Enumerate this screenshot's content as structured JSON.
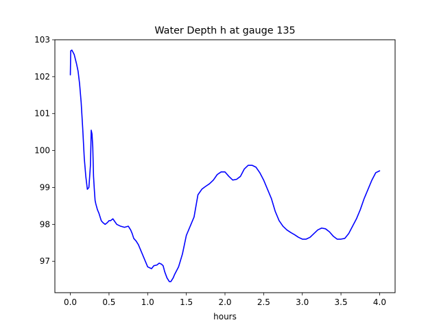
{
  "chart_data": {
    "type": "line",
    "title": "Water Depth h at gauge 135",
    "xlabel": "hours",
    "ylabel": "",
    "xlim": [
      -0.2,
      4.2
    ],
    "ylim": [
      96.15,
      103.0
    ],
    "grid": false,
    "x_ticks": [
      {
        "value": 0.0,
        "label": "0.0"
      },
      {
        "value": 0.5,
        "label": "0.5"
      },
      {
        "value": 1.0,
        "label": "1.0"
      },
      {
        "value": 1.5,
        "label": "1.5"
      },
      {
        "value": 2.0,
        "label": "2.0"
      },
      {
        "value": 2.5,
        "label": "2.5"
      },
      {
        "value": 3.0,
        "label": "3.0"
      },
      {
        "value": 3.5,
        "label": "3.5"
      },
      {
        "value": 4.0,
        "label": "4.0"
      }
    ],
    "y_ticks": [
      {
        "value": 97,
        "label": "97"
      },
      {
        "value": 98,
        "label": "98"
      },
      {
        "value": 99,
        "label": "99"
      },
      {
        "value": 100,
        "label": "100"
      },
      {
        "value": 101,
        "label": "101"
      },
      {
        "value": 102,
        "label": "102"
      },
      {
        "value": 103,
        "label": "103"
      }
    ],
    "series": [
      {
        "color": "#0000ff",
        "x": [
          0.0,
          0.005,
          0.02,
          0.05,
          0.08,
          0.1,
          0.12,
          0.14,
          0.16,
          0.18,
          0.2,
          0.22,
          0.24,
          0.26,
          0.27,
          0.28,
          0.29,
          0.3,
          0.31,
          0.32,
          0.33,
          0.35,
          0.37,
          0.4,
          0.42,
          0.45,
          0.48,
          0.5,
          0.52,
          0.55,
          0.6,
          0.65,
          0.7,
          0.75,
          0.78,
          0.8,
          0.82,
          0.85,
          0.88,
          0.9,
          0.95,
          1.0,
          1.05,
          1.08,
          1.12,
          1.15,
          1.18,
          1.2,
          1.22,
          1.25,
          1.28,
          1.3,
          1.33,
          1.35,
          1.4,
          1.45,
          1.5,
          1.55,
          1.6,
          1.65,
          1.7,
          1.73,
          1.75,
          1.8,
          1.85,
          1.9,
          1.95,
          2.0,
          2.05,
          2.1,
          2.15,
          2.2,
          2.25,
          2.3,
          2.35,
          2.4,
          2.45,
          2.5,
          2.55,
          2.6,
          2.65,
          2.7,
          2.75,
          2.8,
          2.85,
          2.9,
          2.95,
          3.0,
          3.05,
          3.1,
          3.15,
          3.2,
          3.25,
          3.3,
          3.35,
          3.4,
          3.45,
          3.5,
          3.55,
          3.6,
          3.65,
          3.7,
          3.75,
          3.8,
          3.85,
          3.9,
          3.95,
          4.0
        ],
        "y": [
          102.05,
          102.7,
          102.72,
          102.6,
          102.35,
          102.15,
          101.8,
          101.3,
          100.6,
          99.8,
          99.3,
          98.95,
          99.0,
          99.6,
          100.55,
          100.45,
          100.1,
          99.3,
          98.95,
          98.65,
          98.55,
          98.4,
          98.3,
          98.1,
          98.05,
          98.0,
          98.05,
          98.1,
          98.1,
          98.15,
          98.0,
          97.95,
          97.92,
          97.95,
          97.85,
          97.75,
          97.62,
          97.55,
          97.45,
          97.35,
          97.1,
          96.85,
          96.8,
          96.88,
          96.9,
          96.95,
          96.92,
          96.88,
          96.72,
          96.55,
          96.45,
          96.45,
          96.55,
          96.65,
          96.85,
          97.2,
          97.7,
          97.95,
          98.2,
          98.8,
          98.95,
          99.0,
          99.03,
          99.1,
          99.2,
          99.35,
          99.42,
          99.42,
          99.3,
          99.2,
          99.22,
          99.3,
          99.5,
          99.6,
          99.6,
          99.55,
          99.4,
          99.2,
          98.95,
          98.7,
          98.35,
          98.1,
          97.95,
          97.85,
          97.78,
          97.72,
          97.65,
          97.6,
          97.6,
          97.65,
          97.75,
          97.85,
          97.9,
          97.88,
          97.8,
          97.68,
          97.6,
          97.6,
          97.62,
          97.75,
          97.95,
          98.15,
          98.4,
          98.7,
          98.95,
          99.2,
          99.4,
          99.45
        ]
      }
    ]
  }
}
